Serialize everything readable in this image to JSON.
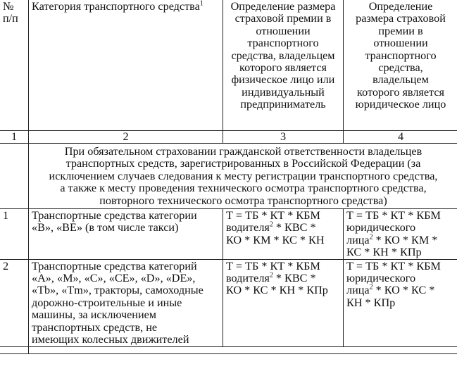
{
  "table": {
    "header": {
      "col1": "№\nп/п",
      "col2": "Категория транспортного средства",
      "col2_sup": "1",
      "col3": "Определение размера\nстраховой премии в\nотношении\nтранспортного\nсредства, владельцем\nкоторого является\nфизическое лицо или\nиндивидуальный\nпредприниматель",
      "col4": "Определение\nразмера страховой\nпремии в\nотношении\nтранспортного\nсредства,\nвладельцем\nкоторого является\nюридическое лицо"
    },
    "column_numbers": [
      "1",
      "2",
      "3",
      "4"
    ],
    "section": "При обязательном страховании гражданской ответственности владельцев\nтранспортных средств, зарегистрированных в Российской Федерации (за\nисключением случаев следования к месту регистрации транспортного средства,\nа также к месту проведения технического осмотра транспортного средства,\nповторного технического осмотра транспортного средства)",
    "rows": [
      {
        "num": "1",
        "category": "Транспортные средства категории\n«В», «ВЕ» (в том числе такси)",
        "individual_a": "Т = ТБ * КТ * КБМ\nводителя",
        "individual_sup": "2",
        "individual_b": " * КВС *\nКО * КМ * КС * КН",
        "legal_a": "Т = ТБ * КТ * КБМ\nюридического\nлица",
        "legal_sup": "2",
        "legal_b": " * КО * КМ *\nКС * КН * КПр"
      },
      {
        "num": "2",
        "category": "Транспортные средства категорий\n«А», «М», «С», «СЕ», «D», «DE»,\n«Tb», «Tm», тракторы, самоходные\nдорожно-строительные и иные\nмашины, за исключением\nтранспортных средств, не\nимеющих колесных движителей",
        "individual_a": "Т = ТБ * КТ * КБМ\nводителя",
        "individual_sup": "2",
        "individual_b": " * КВС *\nКО * КС * КН * КПр",
        "legal_a": "Т = ТБ * КТ * КБМ\nюридического\nлица",
        "legal_sup": "2",
        "legal_b": " * КО * КС *\nКН * КПр"
      }
    ]
  }
}
